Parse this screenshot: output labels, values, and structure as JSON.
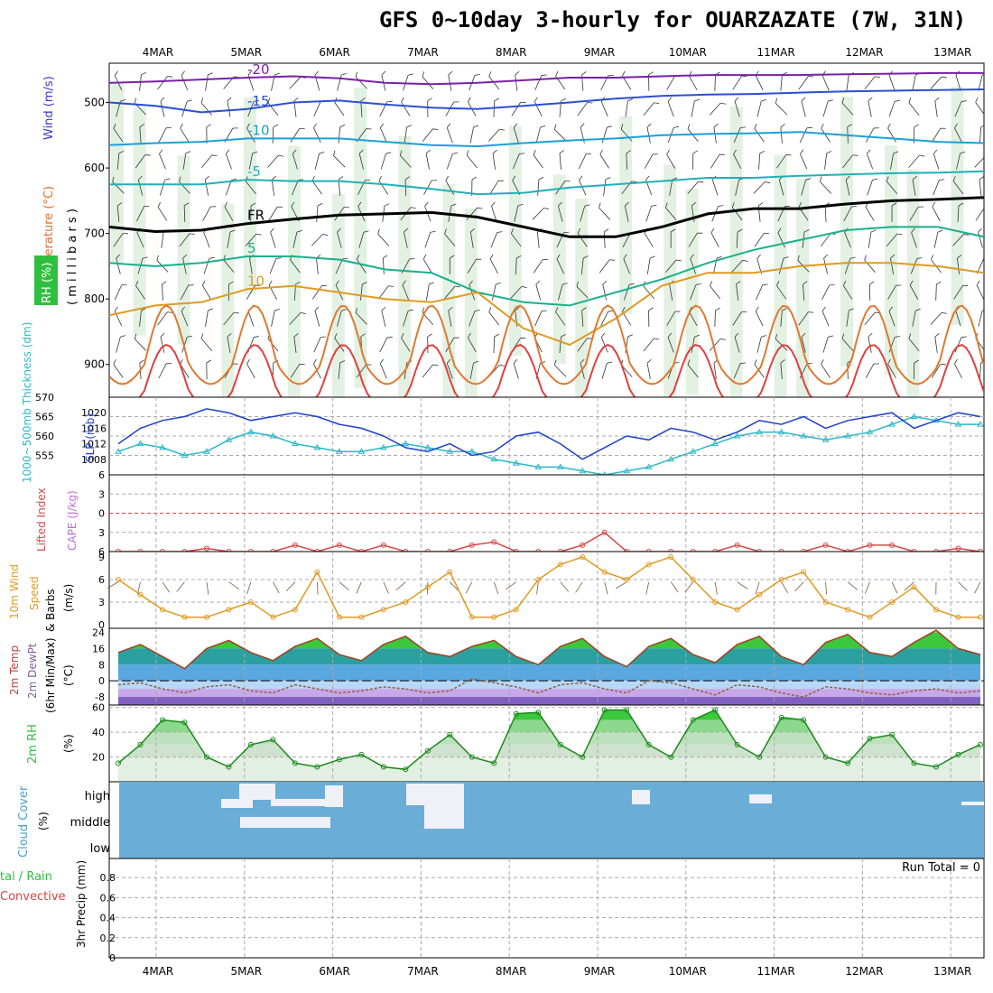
{
  "title": "GFS 0~10day 3-hourly for OUARZAZATE (7W, 31N)",
  "chart_data": [
    {
      "panel": "upper-air",
      "type": "heatmap",
      "x": [
        "4MAR",
        "5MAR",
        "6MAR",
        "7MAR",
        "8MAR",
        "9MAR",
        "10MAR",
        "11MAR",
        "12MAR",
        "13MAR"
      ],
      "ylabel_parts": [
        "Wind (m/s)",
        "Temperature (°C)",
        "RH (%)",
        "( m i l l i b a r s )"
      ],
      "ylim": [
        950,
        440
      ],
      "yticks": [
        "500",
        "600",
        "700",
        "800",
        "900"
      ],
      "isotherms": [
        {
          "label": "-20",
          "level_mb": [
            470,
            468,
            465,
            462,
            460,
            463,
            470,
            472,
            470,
            466,
            462,
            462,
            460,
            458,
            458,
            458,
            457,
            456,
            455,
            455
          ],
          "color": "#7a1fa8"
        },
        {
          "label": "-15",
          "level_mb": [
            500,
            505,
            515,
            510,
            500,
            497,
            503,
            508,
            510,
            505,
            500,
            494,
            490,
            488,
            487,
            485,
            483,
            482,
            481,
            480
          ],
          "color": "#2b4fd0"
        },
        {
          "label": "-10",
          "level_mb": [
            565,
            562,
            560,
            555,
            555,
            555,
            560,
            565,
            567,
            562,
            558,
            555,
            550,
            548,
            547,
            545,
            550,
            555,
            560,
            562
          ],
          "color": "#1c9fd8"
        },
        {
          "label": "-5",
          "level_mb": [
            625,
            625,
            625,
            618,
            620,
            620,
            625,
            632,
            640,
            638,
            630,
            625,
            620,
            615,
            615,
            612,
            610,
            608,
            607,
            605
          ],
          "color": "#1fb0b8"
        },
        {
          "label": "FR",
          "level_mb": [
            690,
            697,
            695,
            685,
            678,
            672,
            670,
            668,
            675,
            690,
            705,
            705,
            690,
            670,
            662,
            662,
            655,
            650,
            648,
            645
          ],
          "color": "#000000"
        },
        {
          "label": "5",
          "level_mb": [
            745,
            750,
            745,
            735,
            735,
            740,
            755,
            760,
            790,
            805,
            810,
            790,
            770,
            745,
            725,
            710,
            695,
            690,
            690,
            705
          ],
          "color": "#17b08a"
        },
        {
          "label": "10",
          "level_mb": [
            825,
            810,
            805,
            785,
            780,
            790,
            800,
            805,
            790,
            845,
            870,
            830,
            780,
            760,
            760,
            750,
            745,
            745,
            750,
            760
          ],
          "color": "#e09a20"
        }
      ],
      "legend": {
        "rh_label": "RH (%)",
        "rh_color": "#2fbf3f",
        "temp_color": "#e86a2a",
        "wind_color": "#3a3ad0"
      }
    },
    {
      "panel": "thickness-slp",
      "type": "line",
      "ylabel_left": "1000~500mb Thickness (dm)",
      "ylabel_right": "SLP (mb)",
      "ylim_left": [
        550,
        570
      ],
      "ylim_right": [
        1004,
        1024
      ],
      "left_ticks": [
        "570",
        "565",
        "560",
        "555"
      ],
      "right_ticks": [
        "1020",
        "1016",
        "1012",
        "1008"
      ],
      "series": [
        {
          "name": "SLP",
          "values": [
            1012,
            1016,
            1018,
            1019,
            1021,
            1020,
            1018,
            1019,
            1020,
            1019,
            1017,
            1016,
            1014,
            1011,
            1010,
            1012,
            1009,
            1010,
            1014,
            1015,
            1012,
            1008,
            1011,
            1014,
            1013,
            1016,
            1015,
            1013,
            1015,
            1018,
            1017,
            1019,
            1016,
            1018,
            1019,
            1020,
            1016,
            1018,
            1020,
            1019
          ],
          "color": "#1f3fd0"
        },
        {
          "name": "Thickness",
          "values": [
            556,
            558,
            557,
            555,
            556,
            559,
            561,
            560,
            558,
            557,
            556,
            556,
            557,
            558,
            557,
            556,
            556,
            554,
            553,
            552,
            552,
            551,
            550,
            551,
            552,
            554,
            556,
            558,
            560,
            561,
            561,
            560,
            559,
            560,
            561,
            563,
            565,
            564,
            563,
            563
          ],
          "color": "#2ab8c8"
        }
      ]
    },
    {
      "panel": "stability",
      "type": "line",
      "ylabel": [
        "Lifted Index",
        "CAPE (J/kg)"
      ],
      "ylim": [
        6,
        -6
      ],
      "yticks": [
        "-6",
        "-3",
        "0",
        "3",
        "6"
      ],
      "series": [
        {
          "name": "Lifted Index",
          "values": [
            6,
            6,
            6,
            6,
            5.5,
            6,
            6,
            6,
            5,
            6,
            5,
            6,
            5,
            6,
            6,
            6,
            5,
            4.5,
            6,
            6,
            6,
            5,
            3,
            6,
            6,
            6,
            6,
            6,
            5,
            6,
            6,
            6,
            5,
            6,
            5,
            5,
            6,
            6,
            5.5,
            6
          ],
          "color": "#d84848"
        }
      ]
    },
    {
      "panel": "wind10m",
      "type": "line",
      "ylabel": [
        "10m Wind",
        "Speed",
        "& Barbs",
        "(m/s)"
      ],
      "ylim": [
        0,
        9
      ],
      "yticks": [
        "0",
        "3",
        "6",
        "9"
      ],
      "series": [
        {
          "name": "10m Wind Speed",
          "values": [
            6,
            4,
            2,
            1,
            1,
            2,
            3,
            1,
            2,
            7,
            1,
            1,
            2,
            3,
            5,
            7,
            1,
            1,
            2,
            6,
            8,
            9,
            7,
            6,
            8,
            9,
            6,
            3,
            2,
            4,
            6,
            7,
            3,
            2,
            1,
            3,
            5,
            2,
            1,
            1
          ],
          "color": "#e09a20"
        }
      ]
    },
    {
      "panel": "temperature2m",
      "type": "area",
      "ylabel": [
        "2m Temp",
        "2m DewPt",
        "(6hr Min/Max)",
        "(°C)"
      ],
      "ylim": [
        -12,
        26
      ],
      "yticks": [
        "24",
        "16",
        "8",
        "0",
        "-8"
      ],
      "series": [
        {
          "name": "2m Temp",
          "values": [
            14,
            18,
            12,
            6,
            16,
            20,
            14,
            10,
            17,
            21,
            13,
            10,
            18,
            22,
            14,
            12,
            17,
            20,
            12,
            8,
            17,
            21,
            12,
            7,
            17,
            21,
            13,
            9,
            18,
            22,
            12,
            8,
            19,
            23,
            14,
            12,
            19,
            25,
            16,
            13
          ]
        },
        {
          "name": "2m DewPt",
          "values": [
            -2,
            -1,
            -4,
            -6,
            -3,
            -2,
            -5,
            -6,
            -2,
            -4,
            -6,
            -5,
            -3,
            -4,
            -6,
            -5,
            1,
            -1,
            -3,
            -6,
            -2,
            -1,
            -4,
            -6,
            0,
            -1,
            -4,
            -7,
            -2,
            -3,
            -6,
            -8,
            -3,
            -4,
            -6,
            -7,
            -5,
            -4,
            -6,
            -5
          ]
        }
      ]
    },
    {
      "panel": "rh2m",
      "type": "area",
      "ylabel": [
        "2m RH",
        "(%)"
      ],
      "ylim": [
        0,
        62
      ],
      "yticks": [
        "60",
        "40",
        "20"
      ],
      "series": [
        {
          "name": "2m RH",
          "values": [
            15,
            30,
            50,
            48,
            20,
            12,
            30,
            34,
            15,
            12,
            18,
            22,
            12,
            10,
            25,
            38,
            20,
            15,
            55,
            56,
            30,
            20,
            58,
            58,
            30,
            20,
            50,
            58,
            30,
            20,
            52,
            50,
            20,
            15,
            35,
            38,
            15,
            12,
            22,
            30
          ]
        }
      ]
    },
    {
      "panel": "cloud",
      "type": "heatmap",
      "ylabel": [
        "Cloud Cover",
        "(%)"
      ],
      "levels": [
        "high",
        "middle",
        "low"
      ]
    },
    {
      "panel": "precip",
      "type": "bar",
      "ylabel": [
        "3hr Precip (mm)"
      ],
      "left_labels": [
        "tal / Rain",
        "Convective"
      ],
      "yticks": [
        "0.8",
        "0.6",
        "0.4",
        "0.2",
        "0"
      ],
      "ylim": [
        0,
        0.9
      ],
      "annotation": "Run Total = 0",
      "values": []
    }
  ],
  "date_labels": [
    "4MAR",
    "5MAR",
    "6MAR",
    "7MAR",
    "8MAR",
    "9MAR",
    "10MAR",
    "11MAR",
    "12MAR",
    "13MAR"
  ]
}
